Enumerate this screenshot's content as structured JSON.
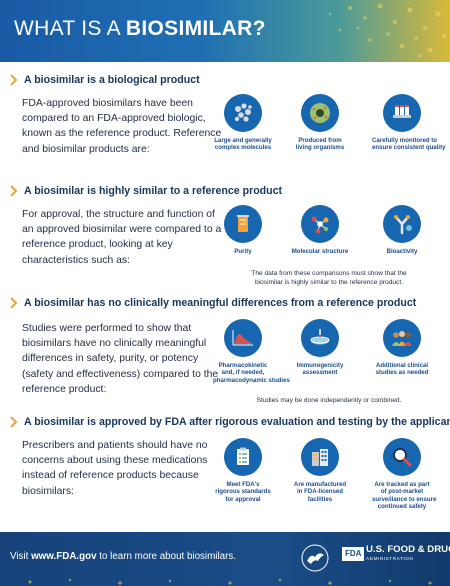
{
  "header": {
    "title_prefix": "WHAT IS A ",
    "title_bold": "BIOSIMILAR?"
  },
  "sections": [
    {
      "title": "A biosimilar is a biological product",
      "body": "FDA-approved biosimilars have been compared to an FDA-approved biologic, known as the reference product. Reference and biosimilar products are:",
      "icons": [
        {
          "icon": "molecule-icon",
          "caption": [
            "Large and generally",
            "complex molecules"
          ]
        },
        {
          "icon": "cell-icon",
          "caption": [
            "Produced from",
            "living organisms"
          ]
        },
        {
          "icon": "vials-icon",
          "caption": [
            "Carefully monitored to",
            "ensure consistent quality"
          ]
        }
      ],
      "note": ""
    },
    {
      "title": "A biosimilar is highly similar to a reference product",
      "body": "For approval, the structure and function of an approved biosimilar were compared to a reference product, looking at key characteristics such as:",
      "icons": [
        {
          "icon": "beaker-icon",
          "caption": [
            "Purity"
          ]
        },
        {
          "icon": "molecular-structure-icon",
          "caption": [
            "Molecular structure"
          ]
        },
        {
          "icon": "antibody-icon",
          "caption": [
            "Bioactivity"
          ]
        }
      ],
      "note": [
        "The data from these comparisons must show that the",
        "biosimilar is highly similar to the reference product."
      ]
    },
    {
      "title": "A biosimilar has no clinically meaningful differences from a reference product",
      "body": "Studies were performed to show that biosimilars have no clinically meaningful differences in safety, purity, or potency (safety and effectiveness) compared to the reference product:",
      "icons": [
        {
          "icon": "pk-curve-icon",
          "caption": [
            "Pharmacokinetic",
            "and, if needed,",
            "pharmacodynamic studies"
          ]
        },
        {
          "icon": "petri-dish-icon",
          "caption": [
            "Immunogenicity",
            "assessment"
          ]
        },
        {
          "icon": "people-icon",
          "caption": [
            "Additional clinical",
            "studies as needed"
          ]
        }
      ],
      "note": [
        "Studies may be done independently or combined."
      ]
    },
    {
      "title": "A biosimilar is approved by FDA after rigorous evaluation and testing by the applicant",
      "body": "Prescribers and patients should have no concerns about using these medications instead of reference products because biosimilars:",
      "icons": [
        {
          "icon": "clipboard-icon",
          "caption": [
            "Meet FDA's",
            "rigorous standards",
            "for approval"
          ]
        },
        {
          "icon": "factory-icon",
          "caption": [
            "Are manufactured",
            "in FDA-licensed",
            "facilities"
          ]
        },
        {
          "icon": "magnifier-icon",
          "caption": [
            "Are tracked as part",
            "of post-market",
            "surveillance to ensure",
            "continued safety"
          ]
        }
      ],
      "note": ""
    }
  ],
  "footer": {
    "visit_prefix": "Visit ",
    "visit_link": "www.FDA.gov",
    "visit_suffix": " to learn more about biosimilars.",
    "fda_badge": "FDA",
    "fda_name": "U.S. FOOD & DRUG",
    "fda_admin": "ADMINISTRATION"
  },
  "colors": {
    "accent": "#1766b0",
    "chevron": "#e8a33d",
    "title": "#17365d",
    "footer": "#1a4d88"
  }
}
